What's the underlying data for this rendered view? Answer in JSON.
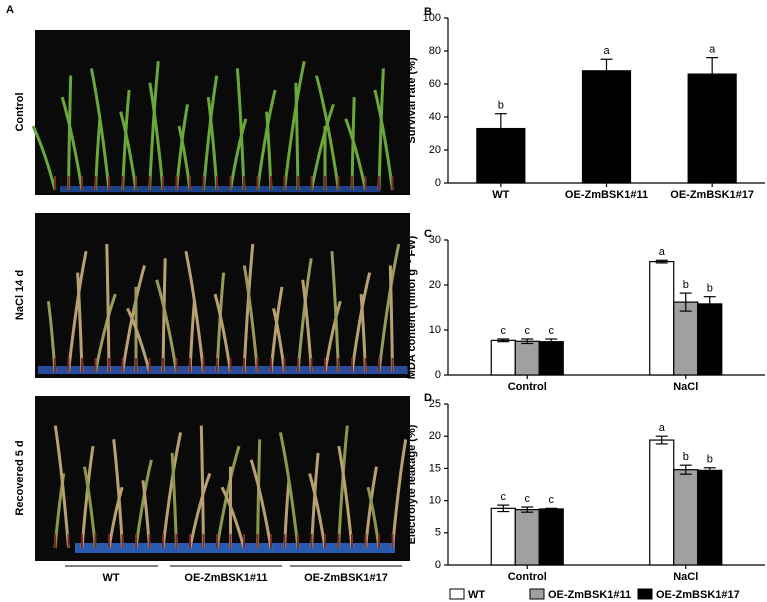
{
  "panel_a": {
    "label": "A",
    "rows": [
      "Control",
      "NaCl 14 d",
      "Recovered 5 d"
    ],
    "columns": [
      "WT",
      "OE-ZmBSK1#11",
      "OE-ZmBSK1#17"
    ]
  },
  "chart_data": [
    {
      "type": "bar",
      "panel": "B",
      "ylabel": "Survival rate (%)",
      "categories": [
        "WT",
        "OE-ZmBSK1#11",
        "OE-ZmBSK1#17"
      ],
      "values": [
        33,
        68,
        66
      ],
      "errors": [
        9,
        7,
        10
      ],
      "significance": [
        "b",
        "a",
        "a"
      ],
      "color": "#000000",
      "ylim": [
        0,
        100
      ],
      "yticks": [
        0,
        20,
        40,
        60,
        80,
        100
      ]
    },
    {
      "type": "bar",
      "panel": "C",
      "ylabel": "MDA content (nmol g⁻¹ FW)",
      "xlabel_row": true,
      "categories": [
        "Control",
        "NaCl"
      ],
      "ylim": [
        0,
        30
      ],
      "yticks": [
        0,
        10,
        20,
        30
      ],
      "series": [
        {
          "color": "#ffffff",
          "values": [
            7.7,
            25.2
          ],
          "errors": [
            0.3,
            0.3
          ],
          "significance": [
            "c",
            "a"
          ]
        },
        {
          "color": "#a0a0a0",
          "values": [
            7.5,
            16.2
          ],
          "errors": [
            0.5,
            2.0
          ],
          "significance": [
            "c",
            "b"
          ]
        },
        {
          "color": "#000000",
          "values": [
            7.4,
            15.8
          ],
          "errors": [
            0.6,
            1.6
          ],
          "significance": [
            "c",
            "b"
          ]
        }
      ]
    },
    {
      "type": "bar",
      "panel": "D",
      "ylabel": "Electrolyte leakage (%)",
      "categories": [
        "Control",
        "NaCl"
      ],
      "ylim": [
        0,
        25
      ],
      "yticks": [
        0,
        5,
        10,
        15,
        20,
        25
      ],
      "series": [
        {
          "name": "WT",
          "color": "#ffffff",
          "values": [
            8.8,
            19.4
          ],
          "errors": [
            0.5,
            0.6
          ],
          "significance": [
            "c",
            "a"
          ]
        },
        {
          "name": "OE-ZmBSK1#11",
          "color": "#a0a0a0",
          "values": [
            8.6,
            14.8
          ],
          "errors": [
            0.4,
            0.7
          ],
          "significance": [
            "c",
            "b"
          ]
        },
        {
          "name": "OE-ZmBSK1#17",
          "color": "#000000",
          "values": [
            8.7,
            14.7
          ],
          "errors": [
            0.1,
            0.4
          ],
          "significance": [
            "c",
            "b"
          ]
        }
      ]
    }
  ]
}
